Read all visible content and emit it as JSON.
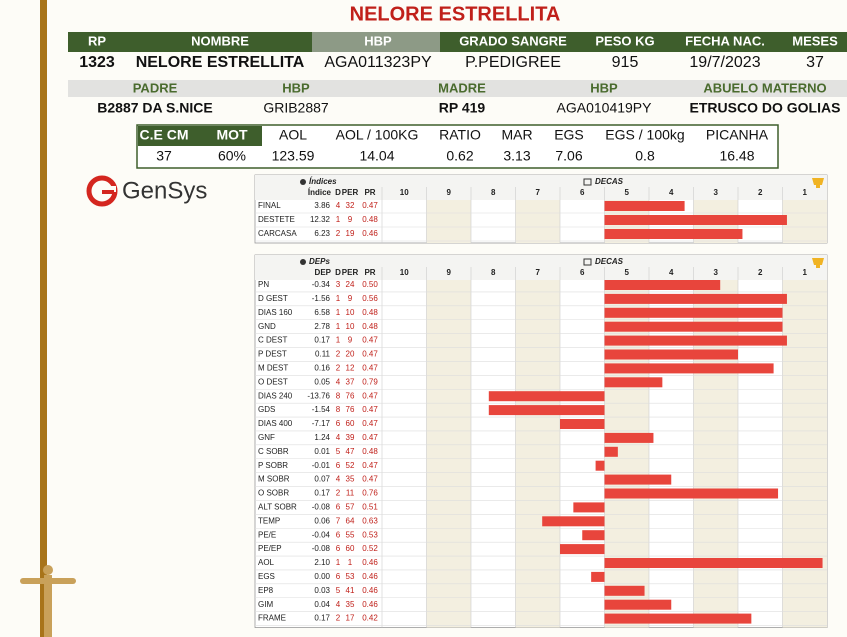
{
  "title": "NELORE ESTRELLITA",
  "animal": {
    "headers": [
      "RP",
      "NOMBRE",
      "HBP",
      "GRADO SANGRE",
      "PESO KG",
      "FECHA NAC.",
      "MESES"
    ],
    "values": [
      "1323",
      "NELORE ESTRELLITA",
      "AGA011323PY",
      "P.PEDIGREE",
      "915",
      "19/7/2023",
      "37"
    ]
  },
  "parents": {
    "headers": [
      "PADRE",
      "HBP",
      "MADRE",
      "HBP",
      "ABUELO MATERNO"
    ],
    "values": [
      "B2887 DA S.NICE",
      "GRIB2887",
      "RP 419",
      "AGA010419PY",
      "ETRUSCO DO GOLIAS"
    ]
  },
  "measures": {
    "headers": [
      "C.E CM",
      "MOT",
      "AOL",
      "AOL / 100KG",
      "RATIO",
      "MAR",
      "EGS",
      "EGS / 100kg",
      "PICANHA"
    ],
    "values": [
      "37",
      "60%",
      "123.59",
      "14.04",
      "0.62",
      "3.13",
      "7.06",
      "0.8",
      "16.48"
    ]
  },
  "logo": "GenSys",
  "indices": {
    "title": "Índices",
    "decas_title": "DECAS",
    "columns": [
      "Índice",
      "D",
      "PER",
      "PR"
    ],
    "decas": [
      10,
      9,
      8,
      7,
      6,
      5,
      4,
      3,
      2,
      1
    ],
    "rows": [
      {
        "name": "FINAL",
        "value": "3.86",
        "d": 4,
        "per": 32,
        "pr": "0.47"
      },
      {
        "name": "DESTETE",
        "value": "12.32",
        "d": 1,
        "per": 9,
        "pr": "0.48"
      },
      {
        "name": "CARCASA",
        "value": "6.23",
        "d": 2,
        "per": 19,
        "pr": "0.46"
      }
    ]
  },
  "deps": {
    "title": "DEPs",
    "decas_title": "DECAS",
    "columns": [
      "DEP",
      "D",
      "PER",
      "PR"
    ],
    "decas": [
      10,
      9,
      8,
      7,
      6,
      5,
      4,
      3,
      2,
      1
    ],
    "rows": [
      {
        "name": "PN",
        "value": "-0.34",
        "d": 3,
        "per": 24,
        "pr": "0.50"
      },
      {
        "name": "D GEST",
        "value": "-1.56",
        "d": 1,
        "per": 9,
        "pr": "0.56"
      },
      {
        "name": "DIAS 160",
        "value": "6.58",
        "d": 1,
        "per": 10,
        "pr": "0.48"
      },
      {
        "name": "GND",
        "value": "2.78",
        "d": 1,
        "per": 10,
        "pr": "0.48"
      },
      {
        "name": "C DEST",
        "value": "0.17",
        "d": 1,
        "per": 9,
        "pr": "0.47"
      },
      {
        "name": "P DEST",
        "value": "0.11",
        "d": 2,
        "per": 20,
        "pr": "0.47"
      },
      {
        "name": "M DEST",
        "value": "0.16",
        "d": 2,
        "per": 12,
        "pr": "0.47"
      },
      {
        "name": "O DEST",
        "value": "0.05",
        "d": 4,
        "per": 37,
        "pr": "0.79"
      },
      {
        "name": "DIAS 240",
        "value": "-13.76",
        "d": 8,
        "per": 76,
        "pr": "0.47"
      },
      {
        "name": "GDS",
        "value": "-1.54",
        "d": 8,
        "per": 76,
        "pr": "0.47"
      },
      {
        "name": "DIAS 400",
        "value": "-7.17",
        "d": 6,
        "per": 60,
        "pr": "0.47"
      },
      {
        "name": "GNF",
        "value": "1.24",
        "d": 4,
        "per": 39,
        "pr": "0.47"
      },
      {
        "name": "C SOBR",
        "value": "0.01",
        "d": 5,
        "per": 47,
        "pr": "0.48"
      },
      {
        "name": "P SOBR",
        "value": "-0.01",
        "d": 6,
        "per": 52,
        "pr": "0.47"
      },
      {
        "name": "M SOBR",
        "value": "0.07",
        "d": 4,
        "per": 35,
        "pr": "0.47"
      },
      {
        "name": "O SOBR",
        "value": "0.17",
        "d": 2,
        "per": 11,
        "pr": "0.76"
      },
      {
        "name": "ALT SOBR",
        "value": "-0.08",
        "d": 6,
        "per": 57,
        "pr": "0.51"
      },
      {
        "name": "TEMP",
        "value": "0.06",
        "d": 7,
        "per": 64,
        "pr": "0.63"
      },
      {
        "name": "PE/E",
        "value": "-0.04",
        "d": 6,
        "per": 55,
        "pr": "0.53"
      },
      {
        "name": "PE/EP",
        "value": "-0.08",
        "d": 6,
        "per": 60,
        "pr": "0.52"
      },
      {
        "name": "AOL",
        "value": "2.10",
        "d": 1,
        "per": 1,
        "pr": "0.46"
      },
      {
        "name": "EGS",
        "value": "0.00",
        "d": 6,
        "per": 53,
        "pr": "0.46"
      },
      {
        "name": "EP8",
        "value": "0.03",
        "d": 5,
        "per": 41,
        "pr": "0.46"
      },
      {
        "name": "GIM",
        "value": "0.04",
        "d": 4,
        "per": 35,
        "pr": "0.46"
      },
      {
        "name": "FRAME",
        "value": "0.17",
        "d": 2,
        "per": 17,
        "pr": "0.42"
      }
    ]
  }
}
